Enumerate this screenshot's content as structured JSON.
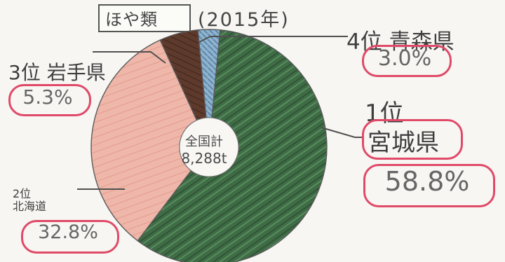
{
  "header": {
    "title": "ほや類",
    "year": "(2015年)"
  },
  "center": {
    "line1": "全国計",
    "line2": "8,288t"
  },
  "chart_data": {
    "type": "pie",
    "title": "ほや類",
    "subtitle": "(2015年)",
    "total_label": "全国計",
    "total_value": "8,288t",
    "slices": [
      {
        "rank": "1位",
        "label": "宮城県",
        "value": 58.8,
        "percent_label": "58.8%",
        "color": "#3f6b45"
      },
      {
        "rank": "2位",
        "label": "北海道",
        "value": 32.8,
        "percent_label": "32.8%",
        "color": "#ebb0a2"
      },
      {
        "rank": "3位",
        "label": "岩手県",
        "value": 5.3,
        "percent_label": "5.3%",
        "color": "#5e3a2c"
      },
      {
        "rank": "4位",
        "label": "青森県",
        "value": 3.0,
        "percent_label": "3.0%",
        "color": "#7ea7c8"
      }
    ]
  },
  "colors": {
    "outline": "#555555",
    "callout_ring": "#e04a68",
    "background": "#f7f6f3"
  }
}
